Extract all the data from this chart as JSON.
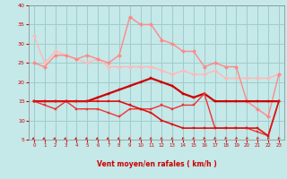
{
  "xlabel": "Vent moyen/en rafales ( km/h )",
  "xlim": [
    -0.5,
    23.5
  ],
  "ylim": [
    5,
    40
  ],
  "yticks": [
    5,
    10,
    15,
    20,
    25,
    30,
    35,
    40
  ],
  "xticks": [
    0,
    1,
    2,
    3,
    4,
    5,
    6,
    7,
    8,
    9,
    10,
    11,
    12,
    13,
    14,
    15,
    16,
    17,
    18,
    19,
    20,
    21,
    22,
    23
  ],
  "bg_color": "#c5e8e8",
  "grid_color": "#a0cccc",
  "line1": {
    "x": [
      0,
      1,
      2,
      3,
      4,
      5,
      6,
      7,
      8,
      9,
      10,
      11,
      12,
      13,
      14,
      15,
      16,
      17,
      18,
      19,
      20,
      21,
      22,
      23
    ],
    "y": [
      32,
      25,
      28,
      27,
      26,
      25,
      26,
      24,
      24,
      24,
      24,
      24,
      23,
      22,
      23,
      22,
      22,
      23,
      21,
      21,
      21,
      21,
      21,
      22
    ],
    "color": "#ffb8b8",
    "lw": 1.0,
    "marker": "D",
    "ms": 2.2
  },
  "line2": {
    "x": [
      0,
      1,
      2,
      3,
      4,
      5,
      6,
      7,
      8,
      9,
      10,
      11,
      12,
      13,
      14,
      15,
      16,
      17,
      18,
      19,
      20,
      21,
      22,
      23
    ],
    "y": [
      25,
      24,
      27,
      27,
      26,
      27,
      26,
      25,
      27,
      37,
      35,
      35,
      31,
      30,
      28,
      28,
      24,
      25,
      24,
      24,
      15,
      13,
      11,
      22
    ],
    "color": "#ff8888",
    "lw": 1.0,
    "marker": "D",
    "ms": 2.2
  },
  "line3": {
    "x": [
      0,
      1,
      2,
      3,
      4,
      5,
      6,
      7,
      8,
      9,
      10,
      11,
      12,
      13,
      14,
      15,
      16,
      17,
      18,
      19,
      20,
      21,
      22,
      23
    ],
    "y": [
      15,
      15,
      15,
      15,
      15,
      15,
      16,
      17,
      18,
      19,
      20,
      21,
      20,
      19,
      17,
      16,
      17,
      15,
      15,
      15,
      15,
      15,
      15,
      15
    ],
    "color": "#cc0000",
    "lw": 1.6,
    "marker": "s",
    "ms": 2.0
  },
  "line4": {
    "x": [
      0,
      1,
      2,
      3,
      4,
      5,
      6,
      7,
      8,
      9,
      10,
      11,
      12,
      13,
      14,
      15,
      16,
      17,
      18,
      19,
      20,
      21,
      22,
      23
    ],
    "y": [
      15,
      14,
      13,
      15,
      13,
      13,
      13,
      12,
      11,
      13,
      13,
      13,
      14,
      13,
      14,
      14,
      17,
      8,
      8,
      8,
      8,
      7,
      6,
      15
    ],
    "color": "#ee3333",
    "lw": 1.0,
    "marker": "s",
    "ms": 2.0
  },
  "line5": {
    "x": [
      0,
      1,
      2,
      3,
      4,
      5,
      6,
      7,
      8,
      9,
      10,
      11,
      12,
      13,
      14,
      15,
      16,
      17,
      18,
      19,
      20,
      21,
      22,
      23
    ],
    "y": [
      15,
      15,
      15,
      15,
      15,
      15,
      15,
      15,
      15,
      14,
      13,
      12,
      10,
      9,
      8,
      8,
      8,
      8,
      8,
      8,
      8,
      8,
      6,
      15
    ],
    "color": "#dd1111",
    "lw": 1.2,
    "marker": "s",
    "ms": 1.8
  },
  "arrow_angles": [
    225,
    225,
    225,
    225,
    225,
    225,
    225,
    225,
    220,
    215,
    210,
    210,
    210,
    210,
    205,
    205,
    200,
    200,
    195,
    195,
    195,
    195,
    195,
    200
  ],
  "arrow_color": "#cc0000"
}
